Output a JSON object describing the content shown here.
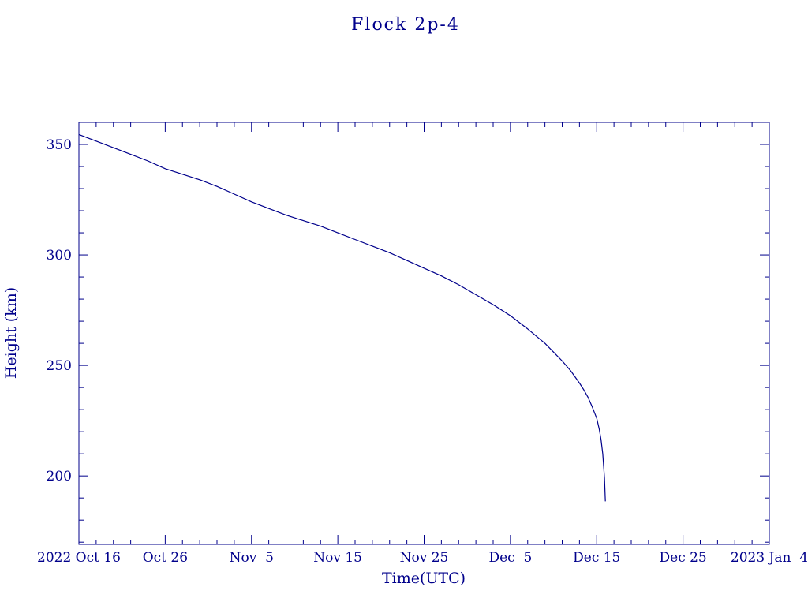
{
  "colors": {
    "axis": "#00008b",
    "line": "#00008b",
    "background": "#ffffff"
  },
  "chart_data": {
    "type": "line",
    "title": "Flock 2p-4",
    "xlabel": "Time(UTC)",
    "ylabel": "Height (km)",
    "x_unit": "days since 2022 Oct 16",
    "xlim": [
      0,
      80
    ],
    "ylim": [
      169,
      360
    ],
    "grid": false,
    "legend": "none",
    "x_major_ticks": [
      0,
      10,
      20,
      30,
      40,
      50,
      60,
      70,
      80
    ],
    "x_tick_labels": [
      "2022 Oct 16",
      "Oct 26",
      "Nov  5",
      "Nov 15",
      "Nov 25",
      "Dec  5",
      "Dec 15",
      "Dec 25",
      "2023 Jan  4"
    ],
    "x_minor_step": 2,
    "y_major_ticks": [
      200,
      250,
      300,
      350
    ],
    "y_minor_step": 10,
    "series": [
      {
        "name": "Flock 2p-4 orbital height",
        "x": [
          0,
          2,
          4,
          6,
          8,
          10,
          12,
          14,
          16,
          18,
          20,
          22,
          24,
          26,
          28,
          30,
          32,
          34,
          36,
          38,
          40,
          42,
          44,
          46,
          48,
          50,
          52,
          54,
          55,
          56,
          57,
          58,
          58.5,
          59,
          59.5,
          60,
          60.3,
          60.5,
          60.7,
          60.9,
          61
        ],
        "y": [
          354.5,
          351.5,
          348.5,
          345.5,
          342.5,
          339.0,
          336.5,
          334.0,
          331.0,
          327.5,
          324.0,
          321.0,
          318.0,
          315.5,
          313.0,
          310.0,
          307.0,
          304.0,
          301.0,
          297.5,
          294.0,
          290.5,
          286.5,
          282.0,
          277.5,
          272.5,
          266.5,
          260.0,
          256.0,
          252.0,
          247.5,
          242.0,
          239.0,
          235.5,
          231.0,
          226.0,
          221.0,
          216.5,
          210.0,
          199.0,
          188.5
        ]
      }
    ]
  }
}
